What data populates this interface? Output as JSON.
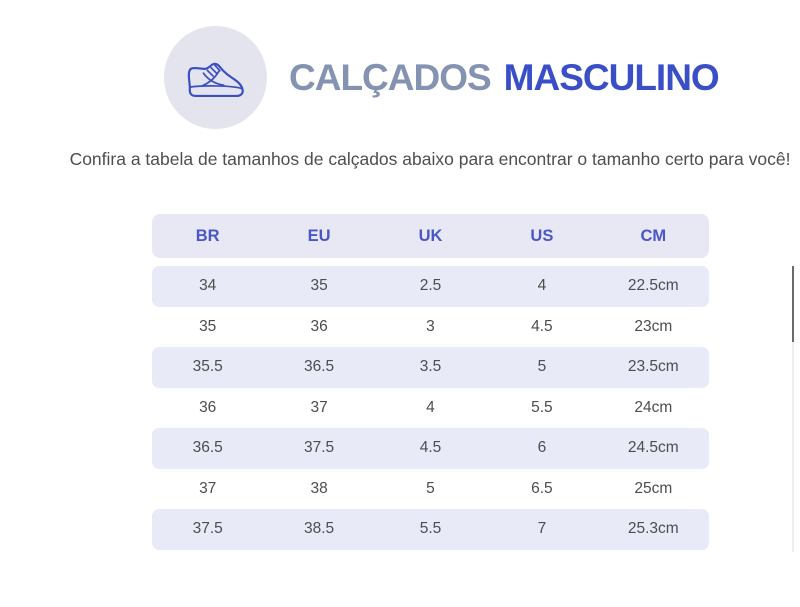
{
  "header": {
    "icon": "sneaker-icon",
    "title_primary": "CALÇADOS",
    "title_secondary": "MASCULINO"
  },
  "subtitle": "Confira a tabela de tamanhos de calçados abaixo para encontrar o tamanho certo para você!",
  "size_table": {
    "columns": [
      "BR",
      "EU",
      "UK",
      "US",
      "CM"
    ],
    "rows": [
      [
        "34",
        "35",
        "2.5",
        "4",
        "22.5cm"
      ],
      [
        "35",
        "36",
        "3",
        "4.5",
        "23cm"
      ],
      [
        "35.5",
        "36.5",
        "3.5",
        "5",
        "23.5cm"
      ],
      [
        "36",
        "37",
        "4",
        "5.5",
        "24cm"
      ],
      [
        "36.5",
        "37.5",
        "4.5",
        "6",
        "24.5cm"
      ],
      [
        "37",
        "38",
        "5",
        "6.5",
        "25cm"
      ],
      [
        "37.5",
        "38.5",
        "5.5",
        "7",
        "25.3cm"
      ]
    ]
  },
  "colors": {
    "accent_blue": "#3a4ec8",
    "muted_blue_gray": "#8593b2",
    "header_text": "#4956c6",
    "header_lavender": "#e8e8f5",
    "row_lavender": "#e9eaf8",
    "icon_circle": "#e4e4ef",
    "icon_stroke": "#3b4ec2"
  }
}
